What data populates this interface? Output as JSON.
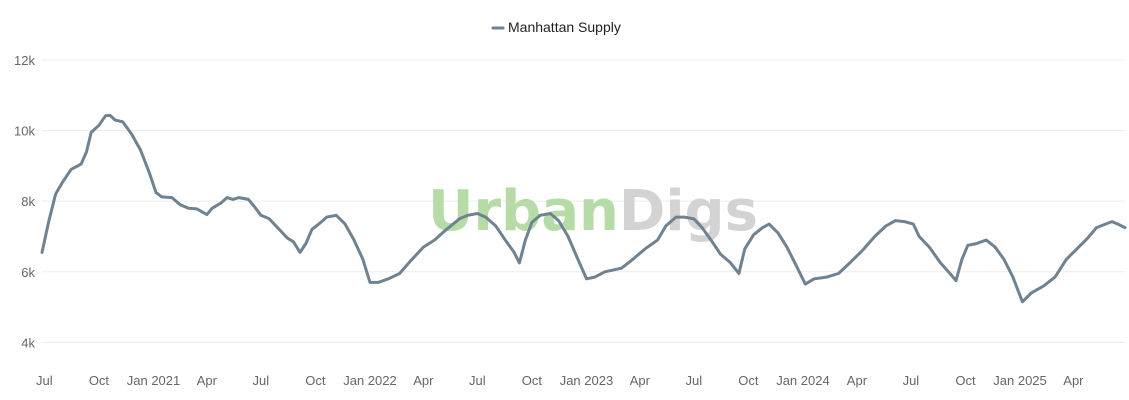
{
  "chart_data": {
    "type": "line",
    "series": [
      {
        "name": "Manhattan Supply",
        "color": "#6f8291",
        "points": [
          [
            "2020-06-27",
            6550
          ],
          [
            "2020-07-08",
            7400
          ],
          [
            "2020-07-20",
            8200
          ],
          [
            "2020-08-01",
            8550
          ],
          [
            "2020-08-15",
            8900
          ],
          [
            "2020-09-01",
            9050
          ],
          [
            "2020-09-10",
            9400
          ],
          [
            "2020-09-18",
            9950
          ],
          [
            "2020-10-01",
            10150
          ],
          [
            "2020-10-12",
            10420
          ],
          [
            "2020-10-20",
            10430
          ],
          [
            "2020-10-28",
            10300
          ],
          [
            "2020-11-10",
            10250
          ],
          [
            "2020-11-25",
            9900
          ],
          [
            "2020-12-10",
            9450
          ],
          [
            "2020-12-25",
            8800
          ],
          [
            "2021-01-05",
            8250
          ],
          [
            "2021-01-15",
            8120
          ],
          [
            "2021-02-01",
            8100
          ],
          [
            "2021-02-15",
            7900
          ],
          [
            "2021-03-01",
            7800
          ],
          [
            "2021-03-15",
            7780
          ],
          [
            "2021-04-01",
            7620
          ],
          [
            "2021-04-10",
            7800
          ],
          [
            "2021-04-25",
            7950
          ],
          [
            "2021-05-05",
            8100
          ],
          [
            "2021-05-15",
            8050
          ],
          [
            "2021-05-25",
            8100
          ],
          [
            "2021-06-10",
            8050
          ],
          [
            "2021-06-20",
            7850
          ],
          [
            "2021-07-01",
            7600
          ],
          [
            "2021-07-15",
            7500
          ],
          [
            "2021-08-01",
            7200
          ],
          [
            "2021-08-15",
            6950
          ],
          [
            "2021-08-25",
            6850
          ],
          [
            "2021-09-05",
            6550
          ],
          [
            "2021-09-15",
            6800
          ],
          [
            "2021-09-25",
            7200
          ],
          [
            "2021-10-10",
            7400
          ],
          [
            "2021-10-20",
            7550
          ],
          [
            "2021-11-05",
            7600
          ],
          [
            "2021-11-20",
            7350
          ],
          [
            "2021-12-05",
            6900
          ],
          [
            "2021-12-20",
            6350
          ],
          [
            "2022-01-01",
            5700
          ],
          [
            "2022-01-15",
            5700
          ],
          [
            "2022-02-01",
            5800
          ],
          [
            "2022-02-20",
            5950
          ],
          [
            "2022-03-10",
            6300
          ],
          [
            "2022-04-01",
            6700
          ],
          [
            "2022-04-20",
            6900
          ],
          [
            "2022-05-10",
            7200
          ],
          [
            "2022-06-01",
            7500
          ],
          [
            "2022-06-15",
            7600
          ],
          [
            "2022-07-01",
            7650
          ],
          [
            "2022-07-15",
            7550
          ],
          [
            "2022-08-01",
            7300
          ],
          [
            "2022-08-15",
            6950
          ],
          [
            "2022-09-01",
            6550
          ],
          [
            "2022-09-10",
            6250
          ],
          [
            "2022-09-20",
            6900
          ],
          [
            "2022-10-01",
            7400
          ],
          [
            "2022-10-15",
            7600
          ],
          [
            "2022-11-01",
            7650
          ],
          [
            "2022-11-15",
            7450
          ],
          [
            "2022-12-01",
            7000
          ],
          [
            "2022-12-15",
            6450
          ],
          [
            "2023-01-01",
            5800
          ],
          [
            "2023-01-15",
            5850
          ],
          [
            "2023-02-01",
            6000
          ],
          [
            "2023-03-01",
            6100
          ],
          [
            "2023-03-20",
            6350
          ],
          [
            "2023-04-10",
            6650
          ],
          [
            "2023-05-01",
            6900
          ],
          [
            "2023-05-15",
            7300
          ],
          [
            "2023-06-01",
            7550
          ],
          [
            "2023-06-15",
            7550
          ],
          [
            "2023-07-01",
            7500
          ],
          [
            "2023-07-15",
            7250
          ],
          [
            "2023-08-01",
            6850
          ],
          [
            "2023-08-15",
            6500
          ],
          [
            "2023-09-01",
            6250
          ],
          [
            "2023-09-15",
            5950
          ],
          [
            "2023-09-25",
            6650
          ],
          [
            "2023-10-10",
            7050
          ],
          [
            "2023-10-25",
            7250
          ],
          [
            "2023-11-05",
            7350
          ],
          [
            "2023-11-20",
            7100
          ],
          [
            "2023-12-05",
            6700
          ],
          [
            "2023-12-20",
            6200
          ],
          [
            "2024-01-05",
            5650
          ],
          [
            "2024-01-20",
            5800
          ],
          [
            "2024-02-10",
            5850
          ],
          [
            "2024-03-01",
            5950
          ],
          [
            "2024-03-20",
            6250
          ],
          [
            "2024-04-10",
            6600
          ],
          [
            "2024-05-01",
            7000
          ],
          [
            "2024-05-20",
            7300
          ],
          [
            "2024-06-05",
            7450
          ],
          [
            "2024-06-20",
            7420
          ],
          [
            "2024-07-05",
            7350
          ],
          [
            "2024-07-15",
            7000
          ],
          [
            "2024-08-01",
            6700
          ],
          [
            "2024-08-20",
            6250
          ],
          [
            "2024-09-05",
            5950
          ],
          [
            "2024-09-15",
            5750
          ],
          [
            "2024-09-25",
            6350
          ],
          [
            "2024-10-05",
            6750
          ],
          [
            "2024-10-20",
            6800
          ],
          [
            "2024-11-05",
            6900
          ],
          [
            "2024-11-20",
            6700
          ],
          [
            "2024-12-05",
            6350
          ],
          [
            "2024-12-20",
            5850
          ],
          [
            "2025-01-05",
            5150
          ],
          [
            "2025-01-20",
            5400
          ],
          [
            "2025-02-10",
            5600
          ],
          [
            "2025-03-01",
            5850
          ],
          [
            "2025-03-20",
            6350
          ],
          [
            "2025-04-10",
            6700
          ],
          [
            "2025-04-25",
            6950
          ],
          [
            "2025-05-10",
            7250
          ],
          [
            "2025-05-25",
            7350
          ],
          [
            "2025-06-05",
            7420
          ],
          [
            "2025-06-15",
            7350
          ],
          [
            "2025-06-27",
            7250
          ]
        ]
      }
    ],
    "x_ticks": [
      "Jul",
      "Oct",
      "Jan 2021",
      "Apr",
      "Jul",
      "Oct",
      "Jan 2022",
      "Apr",
      "Jul",
      "Oct",
      "Jan 2023",
      "Apr",
      "Jul",
      "Oct",
      "Jan 2024",
      "Apr",
      "Jul",
      "Oct",
      "Jan 2025",
      "Apr"
    ],
    "x_tick_dates": [
      "2020-07-01",
      "2020-10-01",
      "2021-01-01",
      "2021-04-01",
      "2021-07-01",
      "2021-10-01",
      "2022-01-01",
      "2022-04-01",
      "2022-07-01",
      "2022-10-01",
      "2023-01-01",
      "2023-04-01",
      "2023-07-01",
      "2023-10-01",
      "2024-01-01",
      "2024-04-01",
      "2024-07-01",
      "2024-10-01",
      "2025-01-01",
      "2025-04-01"
    ],
    "y_ticks": [
      "4k",
      "6k",
      "8k",
      "10k",
      "12k"
    ],
    "y_tick_values": [
      4000,
      6000,
      8000,
      10000,
      12000
    ],
    "xlim": [
      "2020-06-27",
      "2025-06-27"
    ],
    "ylim": [
      3500,
      12000
    ],
    "grid": true,
    "legend_position": "top-center",
    "watermark": {
      "part1": "Urban",
      "part2": "Digs",
      "color1": "#b6dba6",
      "color2": "#d3d3d3"
    }
  }
}
